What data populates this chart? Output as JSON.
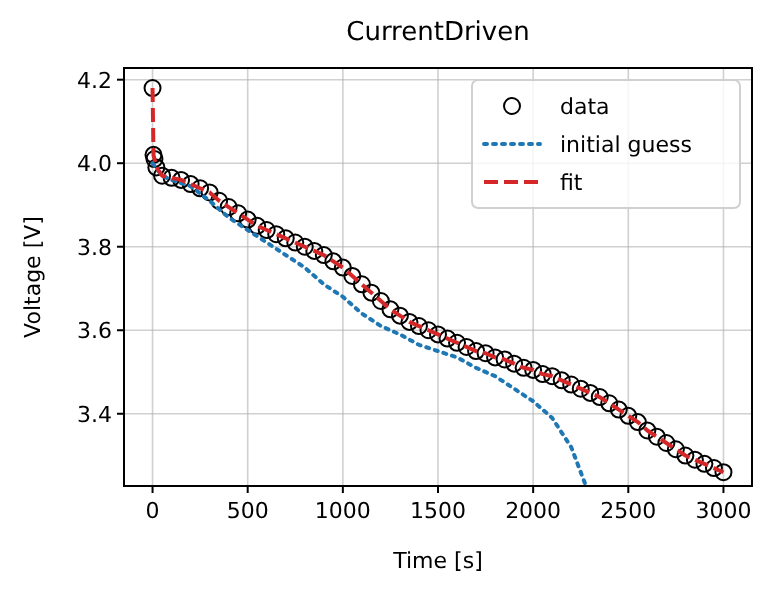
{
  "chart_data": {
    "type": "line",
    "title": "CurrentDriven",
    "xlabel": "Time [s]",
    "ylabel": "Voltage [V]",
    "xlim": [
      -150,
      3150
    ],
    "xticks": [
      0,
      500,
      1000,
      1500,
      2000,
      2500,
      3000
    ],
    "ylim": [
      3.227,
      4.228
    ],
    "yticks": [
      3.4,
      3.6,
      3.8,
      {
        "value": 4,
        "label": "4.0"
      },
      4.2
    ],
    "grid": true,
    "legend": "top right",
    "series": [
      {
        "name": "data",
        "type": "scatter",
        "marker": "circle",
        "color": "#000000",
        "x": [
          0,
          5,
          10,
          20,
          50,
          100,
          150,
          200,
          250,
          300,
          350,
          400,
          450,
          500,
          550,
          600,
          650,
          700,
          750,
          800,
          850,
          900,
          950,
          1000,
          1050,
          1100,
          1150,
          1200,
          1250,
          1300,
          1350,
          1400,
          1450,
          1500,
          1550,
          1600,
          1650,
          1700,
          1750,
          1800,
          1850,
          1900,
          1950,
          2000,
          2050,
          2100,
          2150,
          2200,
          2250,
          2300,
          2350,
          2400,
          2450,
          2500,
          2550,
          2600,
          2650,
          2700,
          2750,
          2800,
          2850,
          2900,
          2950,
          3000
        ],
        "values": [
          4.18,
          4.02,
          4.01,
          3.99,
          3.97,
          3.965,
          3.96,
          3.95,
          3.94,
          3.93,
          3.91,
          3.895,
          3.88,
          3.865,
          3.85,
          3.84,
          3.83,
          3.82,
          3.81,
          3.8,
          3.79,
          3.78,
          3.765,
          3.75,
          3.73,
          3.71,
          3.69,
          3.67,
          3.65,
          3.635,
          3.62,
          3.61,
          3.6,
          3.59,
          3.58,
          3.57,
          3.56,
          3.55,
          3.545,
          3.535,
          3.53,
          3.52,
          3.51,
          3.505,
          3.495,
          3.49,
          3.48,
          3.47,
          3.46,
          3.45,
          3.44,
          3.425,
          3.41,
          3.395,
          3.38,
          3.36,
          3.345,
          3.33,
          3.315,
          3.3,
          3.29,
          3.28,
          3.27,
          3.26
        ]
      },
      {
        "name": "initial guess",
        "line_style": "dotted",
        "color": "#1f77b4",
        "x": [
          0,
          50,
          100,
          200,
          300,
          400,
          500,
          600,
          700,
          800,
          900,
          1000,
          1100,
          1200,
          1300,
          1400,
          1500,
          1600,
          1700,
          1800,
          1900,
          2000,
          2100,
          2200,
          2275
        ],
        "values": [
          4.0,
          3.97,
          3.96,
          3.945,
          3.91,
          3.87,
          3.84,
          3.81,
          3.78,
          3.75,
          3.71,
          3.68,
          3.64,
          3.61,
          3.59,
          3.565,
          3.55,
          3.535,
          3.51,
          3.49,
          3.46,
          3.43,
          3.39,
          3.32,
          3.23
        ]
      },
      {
        "name": "fit",
        "line_style": "dashed",
        "color": "#d62728",
        "x": [
          0,
          5,
          10,
          20,
          50,
          100,
          150,
          200,
          250,
          300,
          350,
          400,
          450,
          500,
          550,
          600,
          650,
          700,
          750,
          800,
          850,
          900,
          950,
          1000,
          1050,
          1100,
          1150,
          1200,
          1250,
          1300,
          1350,
          1400,
          1450,
          1500,
          1550,
          1600,
          1650,
          1700,
          1750,
          1800,
          1850,
          1900,
          1950,
          2000,
          2050,
          2100,
          2150,
          2200,
          2250,
          2300,
          2350,
          2400,
          2450,
          2500,
          2550,
          2600,
          2650,
          2700,
          2750,
          2800,
          2850,
          2900,
          2950,
          3000
        ],
        "values": [
          4.18,
          4.02,
          4.01,
          3.99,
          3.97,
          3.965,
          3.96,
          3.95,
          3.94,
          3.93,
          3.91,
          3.895,
          3.88,
          3.865,
          3.85,
          3.84,
          3.83,
          3.82,
          3.81,
          3.8,
          3.79,
          3.78,
          3.765,
          3.75,
          3.73,
          3.71,
          3.69,
          3.67,
          3.65,
          3.635,
          3.62,
          3.61,
          3.6,
          3.59,
          3.58,
          3.57,
          3.56,
          3.55,
          3.545,
          3.535,
          3.53,
          3.52,
          3.51,
          3.505,
          3.495,
          3.49,
          3.48,
          3.47,
          3.46,
          3.45,
          3.44,
          3.425,
          3.41,
          3.395,
          3.38,
          3.36,
          3.345,
          3.33,
          3.315,
          3.3,
          3.29,
          3.28,
          3.27,
          3.26
        ]
      }
    ]
  }
}
